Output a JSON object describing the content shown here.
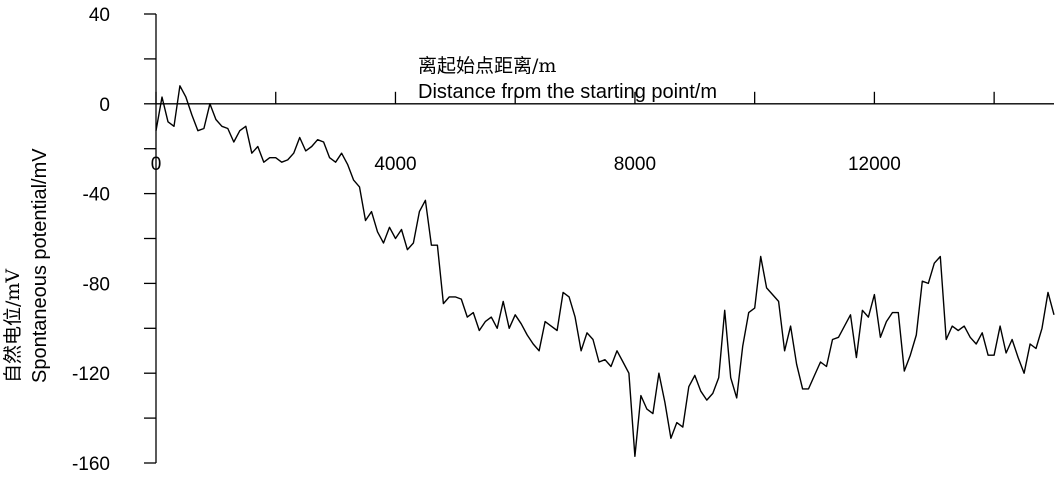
{
  "chart_data": {
    "type": "line",
    "xlabel_cn": "离起始点距离/m",
    "xlabel": "Distance from the starting point/m",
    "ylabel_cn": "自然电位/mV",
    "ylabel": "Spontaneous potential/mV",
    "xlim": [
      0,
      15000
    ],
    "ylim": [
      -160,
      40
    ],
    "x_ticks": [
      0,
      4000,
      8000,
      12000
    ],
    "y_ticks": [
      40,
      0,
      -40,
      -80,
      -120,
      -160
    ],
    "grid": false,
    "series": [
      {
        "x": [
          0,
          100,
          200,
          300,
          400,
          500,
          600,
          700,
          800,
          900,
          1000,
          1100,
          1200,
          1300,
          1400,
          1500,
          1600,
          1700,
          1800,
          1900,
          2000,
          2100,
          2200,
          2300,
          2400,
          2500,
          2600,
          2700,
          2800,
          2900,
          3000,
          3100,
          3200,
          3300,
          3400,
          3500,
          3600,
          3700,
          3800,
          3900,
          4000,
          4100,
          4200,
          4300,
          4400,
          4500,
          4600,
          4700,
          4800,
          4900,
          5000,
          5100,
          5200,
          5300,
          5400,
          5500,
          5600,
          5700,
          5800,
          5900,
          6000,
          6100,
          6200,
          6300,
          6400,
          6500,
          6600,
          6700,
          6800,
          6900,
          7000,
          7100,
          7200,
          7300,
          7400,
          7500,
          7600,
          7700,
          7800,
          7900,
          8000,
          8100,
          8200,
          8300,
          8400,
          8500,
          8600,
          8700,
          8800,
          8900,
          9000,
          9100,
          9200,
          9300,
          9400,
          9500,
          9600,
          9700,
          9800,
          9900,
          10000,
          10100,
          10200,
          10300,
          10400,
          10500,
          10600,
          10700,
          10800,
          10900,
          11000,
          11100,
          11200,
          11300,
          11400,
          11500,
          11600,
          11700,
          11800,
          11900,
          12000,
          12100,
          12200,
          12300,
          12400,
          12500,
          12600,
          12700,
          12800,
          12900,
          13000,
          13100,
          13200,
          13300,
          13400,
          13500,
          13600,
          13700,
          13800,
          13900,
          14000,
          14100,
          14200,
          14300,
          14400,
          14500,
          14600,
          14700,
          14800,
          14900,
          15000
        ],
        "values": [
          -12,
          3,
          -8,
          -10,
          8,
          3,
          -5,
          -12,
          -11,
          0,
          -7,
          -10,
          -11,
          -17,
          -12,
          -10,
          -22,
          -19,
          -26,
          -24,
          -24,
          -26,
          -25,
          -22,
          -15,
          -21,
          -19,
          -16,
          -17,
          -24,
          -26,
          -22,
          -27,
          -34,
          -37,
          -52,
          -48,
          -57,
          -62,
          -55,
          -60,
          -56,
          -65,
          -62,
          -48,
          -43,
          -63,
          -63,
          -89,
          -86,
          -86,
          -87,
          -95,
          -93,
          -101,
          -97,
          -95,
          -100,
          -88,
          -100,
          -94,
          -98,
          -103,
          -107,
          -110,
          -97,
          -99,
          -101,
          -84,
          -86,
          -95,
          -110,
          -102,
          -105,
          -115,
          -114,
          -117,
          -110,
          -115,
          -120,
          -157,
          -130,
          -136,
          -138,
          -120,
          -133,
          -149,
          -142,
          -144,
          -126,
          -121,
          -128,
          -132,
          -129,
          -122,
          -92,
          -122,
          -131,
          -108,
          -93,
          -91,
          -68,
          -82,
          -85,
          -88,
          -110,
          -99,
          -116,
          -127,
          -127,
          -121,
          -115,
          -117,
          -105,
          -104,
          -99,
          -94,
          -113,
          -92,
          -95,
          -85,
          -104,
          -97,
          -93,
          -93,
          -119,
          -112,
          -103,
          -79,
          -80,
          -71,
          -68,
          -105,
          -99,
          -101,
          -99,
          -104,
          -107,
          -102,
          -112,
          -112,
          -99,
          -111,
          -105,
          -113,
          -120,
          -107,
          -109,
          -100,
          -84,
          -94
        ]
      }
    ]
  }
}
